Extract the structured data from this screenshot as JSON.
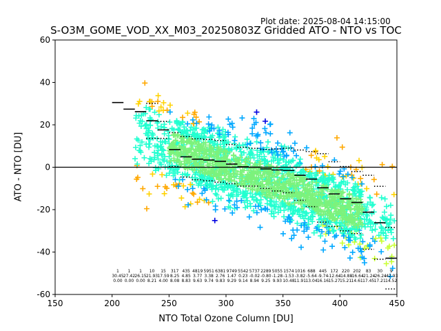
{
  "header": {
    "plot_date": "Plot date: 2025-08-04 14:15:00",
    "title": "S-O3M_GOME_VOD_XX_M03_20250803Z Gridded ATO - NTO vs TOC"
  },
  "chart_data": {
    "type": "scatter",
    "title": "S-O3M_GOME_VOD_XX_M03_20250803Z Gridded ATO - NTO vs TOC",
    "xlabel": "NTO Total Ozone Column [DU]",
    "ylabel": "ATO - NTO [DU]",
    "xlim": [
      150,
      450
    ],
    "ylim": [
      -60,
      60
    ],
    "xticks": [
      150,
      200,
      250,
      300,
      350,
      400,
      450
    ],
    "yticks": [
      -60,
      -40,
      -20,
      0,
      20,
      40,
      60
    ],
    "grid": false,
    "reference_line_y": 0,
    "marker": "plus",
    "colors": {
      "scatter_dense": "#7cf27c",
      "scatter_mid": "#22ffd0",
      "scatter_edge": "#00a8ff",
      "scatter_sparse": "#0000e0",
      "scatter_orange": "#ffa800",
      "scatter_yellow": "#ffd200",
      "scatter_lime": "#c8ff32",
      "mean_line": "#000000"
    },
    "point_cloud": {
      "bulk_x_range": [
        250,
        440
      ],
      "outer_x_range": [
        220,
        448
      ],
      "mean_at_250": 10,
      "mean_at_430": -24,
      "spread_du": 14
    },
    "bin_stats": [
      {
        "x": 205,
        "mean": 30.5,
        "upper": null,
        "lower": null,
        "count": "1",
        "mean_label": "30.45",
        "std_label": "0.00"
      },
      {
        "x": 215,
        "mean": 27.4,
        "upper": null,
        "lower": null,
        "count": "1",
        "mean_label": "27.42",
        "std_label": "0.00"
      },
      {
        "x": 225,
        "mean": 26.2,
        "upper": null,
        "lower": null,
        "count": "1",
        "mean_label": "26.15",
        "std_label": "0.00"
      },
      {
        "x": 235,
        "mean": 21.9,
        "upper": 30.1,
        "lower": 13.6,
        "count": "10",
        "mean_label": "21.93",
        "std_label": "8.21"
      },
      {
        "x": 245,
        "mean": 17.6,
        "upper": 21.6,
        "lower": 13.6,
        "count": "15",
        "mean_label": "17.59",
        "std_label": "4.00"
      },
      {
        "x": 255,
        "mean": 8.3,
        "upper": 16.3,
        "lower": 0.3,
        "count": "317",
        "mean_label": "8.25",
        "std_label": "8.08"
      },
      {
        "x": 265,
        "mean": 4.9,
        "upper": 14.5,
        "lower": -4.6,
        "count": "435",
        "mean_label": "4.85",
        "std_label": "8.83"
      },
      {
        "x": 275,
        "mean": 3.8,
        "upper": 13.4,
        "lower": -5.9,
        "count": "4819",
        "mean_label": "3.77",
        "std_label": "9.63"
      },
      {
        "x": 285,
        "mean": 3.4,
        "upper": 13.1,
        "lower": -6.4,
        "count": "5951",
        "mean_label": "3.38",
        "std_label": "9.74"
      },
      {
        "x": 295,
        "mean": 2.8,
        "upper": 12.6,
        "lower": -7.1,
        "count": "6381",
        "mean_label": "2.76",
        "std_label": "9.83"
      },
      {
        "x": 305,
        "mean": 1.5,
        "upper": 10.7,
        "lower": -7.8,
        "count": "9749",
        "mean_label": "1.47",
        "std_label": "9.29"
      },
      {
        "x": 315,
        "mean": 0.2,
        "upper": 9.4,
        "lower": -8.9,
        "count": "5542",
        "mean_label": "0.23",
        "std_label": "9.14"
      },
      {
        "x": 325,
        "mean": -0.0,
        "upper": 8.9,
        "lower": -8.9,
        "count": "5737",
        "mean_label": "-0.02",
        "std_label": "8.94"
      },
      {
        "x": 335,
        "mean": -0.8,
        "upper": 8.4,
        "lower": -10.0,
        "count": "2289",
        "mean_label": "-0.80",
        "std_label": "9.25"
      },
      {
        "x": 345,
        "mean": -1.3,
        "upper": 8.6,
        "lower": -11.2,
        "count": "5055",
        "mean_label": "-1.28",
        "std_label": "9.93"
      },
      {
        "x": 355,
        "mean": -1.5,
        "upper": 9.0,
        "lower": -12.0,
        "count": "1574",
        "mean_label": "-1.53",
        "std_label": "10.48"
      },
      {
        "x": 365,
        "mean": -3.8,
        "upper": 8.1,
        "lower": -15.6,
        "count": "1016",
        "mean_label": "-3.82",
        "std_label": "11.91"
      },
      {
        "x": 375,
        "mean": -5.6,
        "upper": 7.4,
        "lower": -18.6,
        "count": "688",
        "mean_label": "-5.64",
        "std_label": "13.04"
      },
      {
        "x": 385,
        "mean": -9.7,
        "upper": 6.4,
        "lower": -25.9,
        "count": "445",
        "mean_label": "-9.74",
        "std_label": "16.16"
      },
      {
        "x": 395,
        "mean": -12.6,
        "upper": 2.6,
        "lower": -27.9,
        "count": "172",
        "mean_label": "-12.64",
        "std_label": "15.27"
      },
      {
        "x": 405,
        "mean": -14.9,
        "upper": 0.3,
        "lower": -30.0,
        "count": "220",
        "mean_label": "-14.88",
        "std_label": "15.21"
      },
      {
        "x": 415,
        "mean": -16.6,
        "upper": -2.0,
        "lower": -31.3,
        "count": "202",
        "mean_label": "-16.64",
        "std_label": "14.61"
      },
      {
        "x": 425,
        "mean": -21.2,
        "upper": -3.8,
        "lower": -38.7,
        "count": "83",
        "mean_label": "-21.24",
        "std_label": "17.45"
      },
      {
        "x": 435,
        "mean": -26.2,
        "upper": -9.0,
        "lower": -43.4,
        "count": "30",
        "mean_label": "-26.24",
        "std_label": "17.21"
      },
      {
        "x": 445,
        "mean": -42.9,
        "upper": -28.4,
        "lower": -57.4,
        "count": "9",
        "mean_label": "-42.93",
        "std_label": "14.52"
      }
    ]
  }
}
